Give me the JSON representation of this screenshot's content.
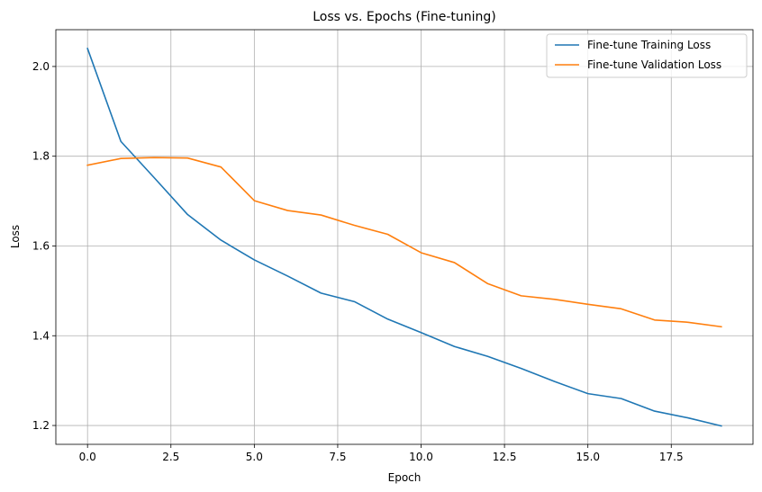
{
  "chart_data": {
    "type": "line",
    "title": "Loss vs. Epochs (Fine-tuning)",
    "xlabel": "Epoch",
    "ylabel": "Loss",
    "xlim": [
      -0.95,
      19.95
    ],
    "ylim": [
      1.158,
      2.082
    ],
    "xticks": [
      0.0,
      2.5,
      5.0,
      7.5,
      10.0,
      12.5,
      15.0,
      17.5
    ],
    "xtick_labels": [
      "0.0",
      "2.5",
      "5.0",
      "7.5",
      "10.0",
      "12.5",
      "15.0",
      "17.5"
    ],
    "yticks": [
      1.2,
      1.4,
      1.6,
      1.8,
      2.0
    ],
    "ytick_labels": [
      "1.2",
      "1.4",
      "1.6",
      "1.8",
      "2.0"
    ],
    "grid": true,
    "legend_position": "top-right",
    "x": [
      0,
      1,
      2,
      3,
      4,
      5,
      6,
      7,
      8,
      9,
      10,
      11,
      12,
      13,
      14,
      15,
      16,
      17,
      18,
      19
    ],
    "series": [
      {
        "name": "Fine-tune Training Loss",
        "color": "#1f77b4",
        "values": [
          2.04,
          1.833,
          1.752,
          1.67,
          1.613,
          1.569,
          1.533,
          1.495,
          1.476,
          1.437,
          1.407,
          1.376,
          1.354,
          1.327,
          1.298,
          1.271,
          1.26,
          1.232,
          1.217,
          1.199
        ]
      },
      {
        "name": "Fine-tune Validation Loss",
        "color": "#ff7f0e",
        "values": [
          1.78,
          1.795,
          1.797,
          1.796,
          1.776,
          1.701,
          1.679,
          1.669,
          1.646,
          1.626,
          1.585,
          1.563,
          1.516,
          1.489,
          1.481,
          1.47,
          1.46,
          1.435,
          1.43,
          1.42
        ]
      }
    ]
  }
}
